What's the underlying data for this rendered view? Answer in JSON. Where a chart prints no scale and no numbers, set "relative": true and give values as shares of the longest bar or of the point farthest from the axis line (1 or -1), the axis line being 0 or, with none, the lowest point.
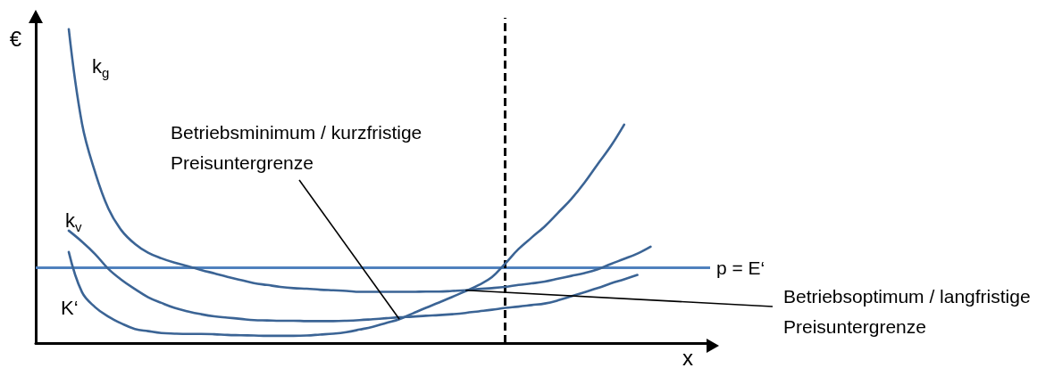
{
  "chart_data": {
    "type": "line",
    "relative": true,
    "marker": "none",
    "xlabel": "x",
    "ylabel": "€",
    "categories": [
      null,
      null,
      null,
      null,
      null,
      null,
      null,
      null,
      null,
      null,
      null,
      null,
      null,
      null,
      null,
      null,
      null,
      null,
      null,
      null,
      null,
      null,
      null,
      null,
      null,
      null,
      null,
      null,
      null,
      null,
      null,
      null,
      null,
      null,
      null,
      null,
      null,
      null,
      null,
      null,
      null,
      null,
      null,
      null,
      null,
      null,
      null,
      null,
      null,
      null,
      null
    ],
    "series": [
      {
        "name": "k$_{g}$",
        "color": "#3b6495",
        "values": [
          null,
          null,
          1,
          0.699,
          0.543,
          0.428,
          0.358,
          0.316,
          0.288,
          0.27,
          0.256,
          0.245,
          0.233,
          0.222,
          0.211,
          0.201,
          0.191,
          0.185,
          0.179,
          0.175,
          0.173,
          0.17,
          0.168,
          0.166,
          0.163,
          0.163,
          0.163,
          0.163,
          0.163,
          0.164,
          0.164,
          0.166,
          0.168,
          0.172,
          0.175,
          0.179,
          0.185,
          0.19,
          0.196,
          0.205,
          0.214,
          0.223,
          0.235,
          0.252,
          0.268,
          0.285,
          0.307,
          null,
          null,
          null,
          null
        ]
      },
      {
        "name": "k$_{v}$",
        "color": "#3b6495",
        "values": [
          null,
          null,
          0.358,
          0.323,
          0.283,
          0.236,
          0.201,
          0.172,
          0.146,
          0.128,
          0.112,
          0.101,
          0.092,
          0.085,
          0.081,
          0.077,
          0.073,
          0.072,
          0.071,
          0.071,
          0.07,
          0.07,
          0.07,
          0.071,
          0.073,
          0.076,
          0.079,
          0.082,
          0.084,
          0.087,
          0.089,
          0.092,
          0.096,
          0.101,
          0.106,
          0.112,
          0.116,
          0.121,
          0.126,
          0.136,
          0.149,
          0.162,
          0.175,
          0.19,
          0.203,
          0.217,
          null,
          null,
          null,
          null,
          null
        ]
      },
      {
        "name": "K‘",
        "color": "#3b6495",
        "values": [
          null,
          null,
          0.29,
          0.162,
          0.114,
          0.084,
          0.062,
          0.045,
          0.038,
          0.032,
          0.03,
          0.029,
          0.029,
          0.028,
          0.026,
          0.025,
          0.024,
          0.023,
          0.023,
          0.023,
          0.024,
          0.027,
          0.03,
          0.035,
          0.043,
          0.052,
          0.064,
          0.076,
          0.094,
          0.112,
          0.129,
          0.147,
          0.165,
          0.185,
          0.21,
          0.253,
          0.299,
          0.336,
          0.372,
          0.415,
          0.459,
          0.511,
          0.57,
          0.628,
          0.696,
          null,
          null,
          null,
          null,
          null,
          null
        ]
      }
    ],
    "ref_lines": [
      {
        "axis": "y",
        "value": 0.239,
        "label": "p = E‘",
        "color": "#4f81bd"
      }
    ],
    "annotations": [
      "Betriebsminimum / kurzfristige Preisuntergrenze",
      "Betriebsoptimum / langfristige Preisuntergrenze"
    ]
  }
}
